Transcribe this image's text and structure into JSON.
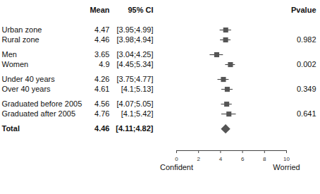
{
  "chart_data": {
    "type": "forest",
    "columns": {
      "mean": "Mean",
      "ci": "95% CI",
      "p": "Pvalue"
    },
    "groups": [
      {
        "rows": [
          {
            "label": "Urban zone",
            "mean": 4.47,
            "lo": 3.95,
            "hi": 4.99,
            "ci_label": "[3.95;4.99]"
          },
          {
            "label": "Rural zone",
            "mean": 4.46,
            "lo": 3.98,
            "hi": 4.94,
            "ci_label": "[3.98;4.94]"
          }
        ],
        "pvalue": 0.982
      },
      {
        "rows": [
          {
            "label": "Men",
            "mean": 3.65,
            "lo": 3.04,
            "hi": 4.25,
            "ci_label": "[3.04;4.25]"
          },
          {
            "label": "Women",
            "mean": 4.9,
            "lo": 4.45,
            "hi": 5.34,
            "ci_label": "[4.45;5.34]"
          }
        ],
        "pvalue": 0.002
      },
      {
        "rows": [
          {
            "label": "Under 40 years",
            "mean": 4.26,
            "lo": 3.75,
            "hi": 4.77,
            "ci_label": "[3.75;4.77]"
          },
          {
            "label": "Over 40 years",
            "mean": 4.61,
            "lo": 4.1,
            "hi": 5.13,
            "ci_label": "[4.1;5.13]"
          }
        ],
        "pvalue": 0.349
      },
      {
        "rows": [
          {
            "label": "Graduated before 2005",
            "mean": 4.56,
            "lo": 4.07,
            "hi": 5.05,
            "ci_label": "[4.07;5.05]"
          },
          {
            "label": "Graduated after 2005",
            "mean": 4.76,
            "lo": 4.1,
            "hi": 5.42,
            "ci_label": "[4.1;5.42]"
          }
        ],
        "pvalue": 0.641
      }
    ],
    "total": {
      "label": "Total",
      "mean": 4.46,
      "lo": 4.11,
      "hi": 4.82,
      "ci_label": "[4.11;4.82]",
      "marker": "diamond"
    },
    "xlim": [
      0,
      10
    ],
    "xticks": [
      0,
      2,
      4,
      6,
      8,
      10
    ],
    "xlabel_left": "Confident",
    "xlabel_right": "Worried",
    "color": "#555555",
    "marker": "square"
  }
}
